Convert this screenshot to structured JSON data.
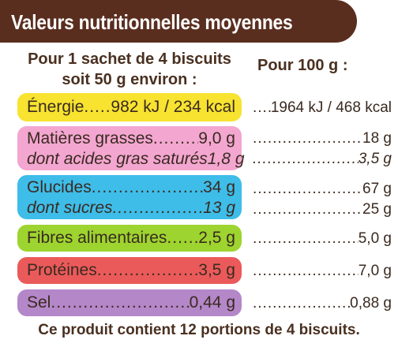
{
  "title": "Valeurs nutritionnelles moyennes",
  "header": {
    "portion_line1": "Pour 1 sachet de 4 biscuits",
    "portion_line2": "soit 50 g environ :",
    "per100": "Pour 100 g :"
  },
  "rows": {
    "energie": {
      "label": "Énergie",
      "portion": "982 kJ / 234 kcal",
      "per100": "1964 kJ / 468 kcal",
      "color": "#f7e330"
    },
    "matieres_grasses": {
      "label": "Matières grasses",
      "portion": "9,0 g",
      "per100": "18 g",
      "color": "#f3a6d0"
    },
    "acides_gras_satures": {
      "label": "dont acides gras saturés",
      "portion": "1,8 g",
      "per100": "3,5 g"
    },
    "glucides": {
      "label": "Glucides",
      "portion": "34 g",
      "per100": "67 g",
      "color": "#3ebde9"
    },
    "sucres": {
      "label": "dont sucres",
      "portion": "13 g",
      "per100": "25 g"
    },
    "fibres": {
      "label": "Fibres alimentaires",
      "portion": "2,5 g",
      "per100": "5,0 g",
      "color": "#9dd42f"
    },
    "proteines": {
      "label": "Protéines",
      "portion": "3,5 g",
      "per100": "7,0 g",
      "color": "#ea5a5a"
    },
    "sel": {
      "label": "Sel",
      "portion": "0,44 g",
      "per100": "0,88 g",
      "color": "#b487c9"
    }
  },
  "footer": "Ce produit contient 12 portions de 4 biscuits.",
  "colors": {
    "banner": "#5a2e1f"
  }
}
